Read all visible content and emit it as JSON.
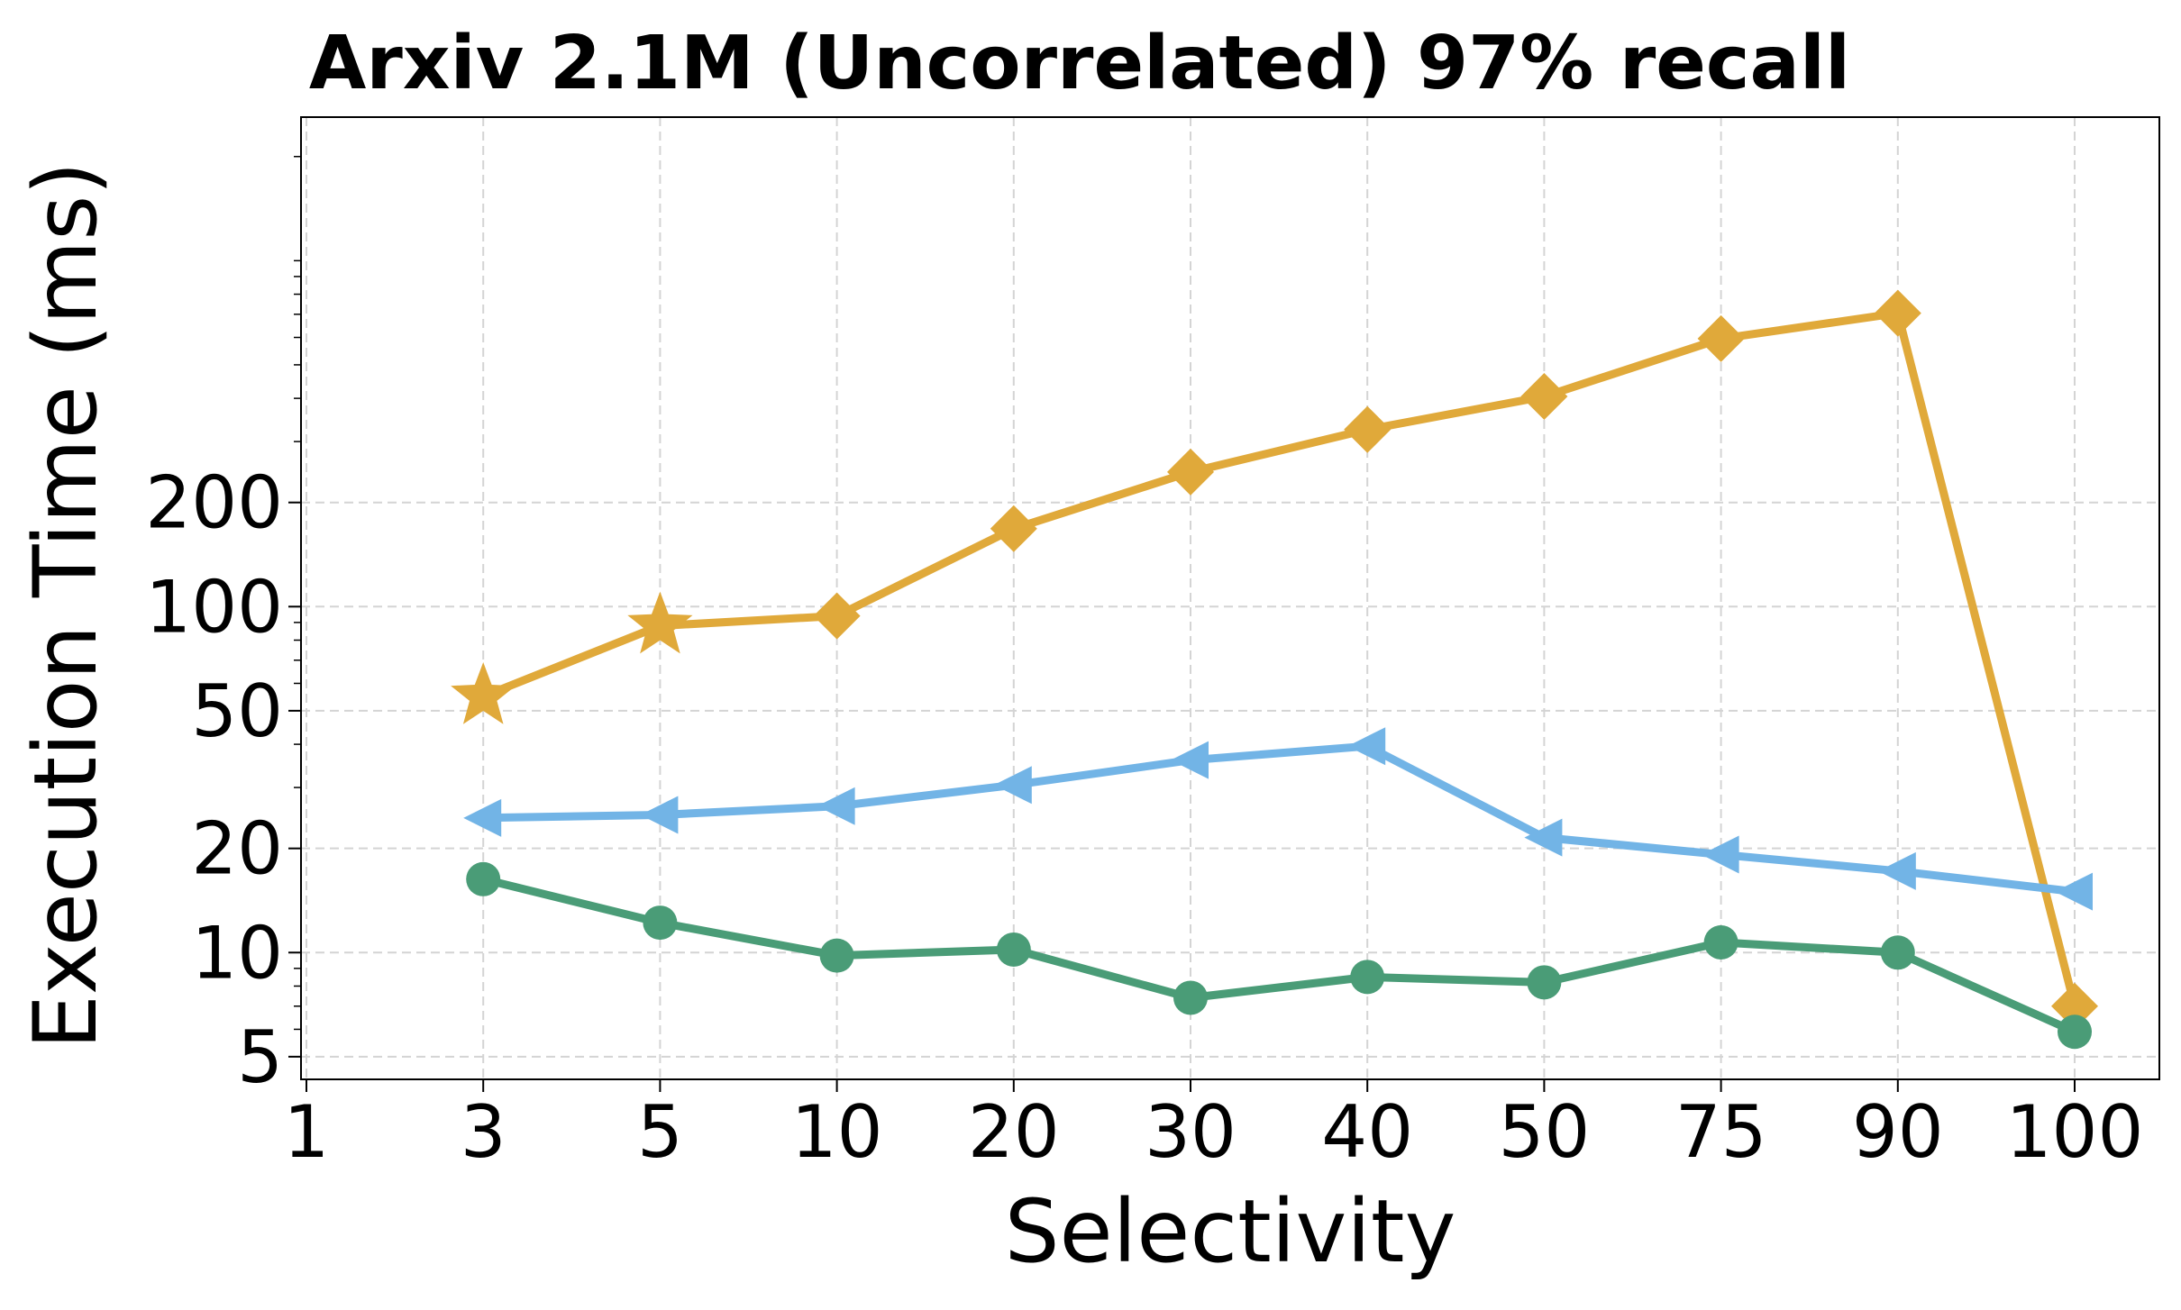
{
  "chart_data": {
    "type": "line",
    "title": "Arxiv 2.1M (Uncorrelated) 97% recall",
    "xlabel": "Selectivity",
    "ylabel": "Execution Time (ms)",
    "x_scale": "categorical",
    "y_scale": "log",
    "ylim": [
      4.3,
      2600
    ],
    "categories": [
      "1",
      "3",
      "5",
      "10",
      "20",
      "30",
      "40",
      "50",
      "75",
      "90",
      "100"
    ],
    "y_ticks": [
      5,
      10,
      20,
      50,
      100,
      200
    ],
    "y_tick_labels": [
      "5",
      "10",
      "20",
      "50",
      "100",
      "200"
    ],
    "grid": true,
    "legend": "none",
    "series": [
      {
        "color": "#E0A93A",
        "marker": "diamond",
        "points": [
          {
            "x": "3",
            "y": 55,
            "marker": "star"
          },
          {
            "x": "5",
            "y": 88,
            "marker": "star"
          },
          {
            "x": "10",
            "y": 94
          },
          {
            "x": "20",
            "y": 168
          },
          {
            "x": "30",
            "y": 245
          },
          {
            "x": "40",
            "y": 325
          },
          {
            "x": "50",
            "y": 405
          },
          {
            "x": "75",
            "y": 595
          },
          {
            "x": "90",
            "y": 705
          },
          {
            "x": "100",
            "y": 7.0
          }
        ]
      },
      {
        "color": "#72B4E6",
        "marker": "triangle-left",
        "points": [
          {
            "x": "3",
            "y": 24.5
          },
          {
            "x": "5",
            "y": 25
          },
          {
            "x": "10",
            "y": 26.5
          },
          {
            "x": "20",
            "y": 30.5
          },
          {
            "x": "30",
            "y": 36
          },
          {
            "x": "40",
            "y": 39.5
          },
          {
            "x": "50",
            "y": 21.5
          },
          {
            "x": "75",
            "y": 19.2
          },
          {
            "x": "90",
            "y": 17.2
          },
          {
            "x": "100",
            "y": 15
          }
        ]
      },
      {
        "color": "#4A9C77",
        "marker": "circle",
        "points": [
          {
            "x": "3",
            "y": 16.3
          },
          {
            "x": "5",
            "y": 12.2
          },
          {
            "x": "10",
            "y": 9.8
          },
          {
            "x": "20",
            "y": 10.2
          },
          {
            "x": "30",
            "y": 7.4
          },
          {
            "x": "40",
            "y": 8.5
          },
          {
            "x": "50",
            "y": 8.2
          },
          {
            "x": "75",
            "y": 10.7
          },
          {
            "x": "90",
            "y": 10.0
          },
          {
            "x": "100",
            "y": 5.9
          }
        ]
      }
    ]
  }
}
